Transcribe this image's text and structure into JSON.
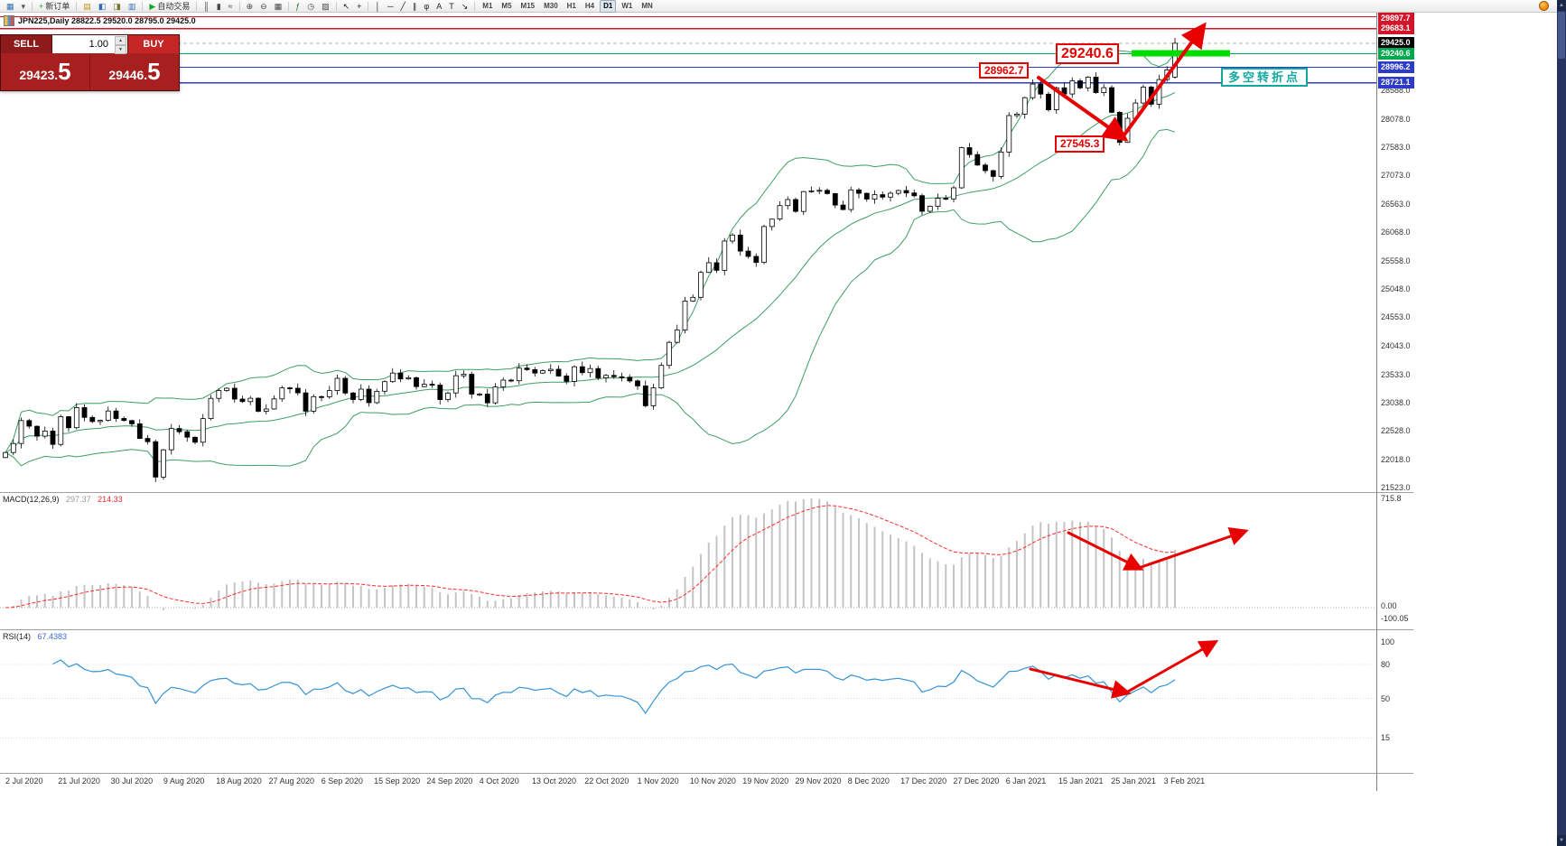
{
  "toolbar": {
    "items": [
      {
        "name": "new-chart-button",
        "glyph": "▦",
        "color": "#2e6db4"
      },
      {
        "name": "profiles-button",
        "glyph": "▾",
        "color": "#555555"
      },
      {
        "sep": true
      },
      {
        "name": "new-order-button",
        "glyph": "+",
        "color": "#18a52c",
        "label": "新订单"
      },
      {
        "sep": true
      },
      {
        "name": "market-watch-button",
        "glyph": "▤",
        "color": "#c08f1c"
      },
      {
        "name": "data-window-button",
        "glyph": "◧",
        "color": "#2e6db4"
      },
      {
        "name": "navigator-button",
        "glyph": "◨",
        "color": "#777733"
      },
      {
        "name": "terminal-button",
        "glyph": "▥",
        "color": "#2e6db4"
      },
      {
        "sep": true
      },
      {
        "name": "auto-trading-button",
        "glyph": "▶",
        "color": "#18a52c",
        "label": "自动交易"
      },
      {
        "sep": true
      },
      {
        "name": "bar-chart-button",
        "glyph": "║",
        "color": "#444444"
      },
      {
        "name": "candlestick-chart-button",
        "glyph": "▮",
        "color": "#444444"
      },
      {
        "name": "line-chart-button",
        "glyph": "≈",
        "color": "#444444"
      },
      {
        "sep": true
      },
      {
        "name": "zoom-in-button",
        "glyph": "⊕",
        "color": "#444444"
      },
      {
        "name": "zoom-out-button",
        "glyph": "⊖",
        "color": "#444444"
      },
      {
        "name": "tile-windows-button",
        "glyph": "▦",
        "color": "#444444"
      },
      {
        "sep": true
      },
      {
        "name": "indicators-button",
        "glyph": "ƒ",
        "color": "#1b7e3c"
      },
      {
        "name": "periods-button",
        "glyph": "◷",
        "color": "#444444"
      },
      {
        "name": "templates-button",
        "glyph": "▨",
        "color": "#444444"
      },
      {
        "sep": true
      },
      {
        "name": "cursor-button",
        "glyph": "↖",
        "color": "#222222"
      },
      {
        "name": "crosshair-button",
        "glyph": "+",
        "color": "#222222"
      },
      {
        "sep": true
      },
      {
        "name": "vertical-line-button",
        "glyph": "│",
        "color": "#222222"
      },
      {
        "name": "horizontal-line-button",
        "glyph": "─",
        "color": "#222222"
      },
      {
        "name": "trendline-button",
        "glyph": "╱",
        "color": "#222222"
      },
      {
        "name": "channel-button",
        "glyph": "∥",
        "color": "#222222"
      },
      {
        "name": "fibonacci-button",
        "glyph": "φ",
        "color": "#222222"
      },
      {
        "name": "text-button",
        "glyph": "A",
        "color": "#222222"
      },
      {
        "name": "label-button",
        "glyph": "T",
        "color": "#222222"
      },
      {
        "name": "arrows-tool-button",
        "glyph": "↘",
        "color": "#222222"
      },
      {
        "sep": true
      }
    ],
    "timeframes": [
      "M1",
      "M5",
      "M15",
      "M30",
      "H1",
      "H4",
      "D1",
      "W1",
      "MN"
    ],
    "active_timeframe": "D1"
  },
  "chart": {
    "title_line": "JPN225,Daily  28822.5 29520.0 28795.0 29425.0"
  },
  "one_click": {
    "sell_label": "SELL",
    "buy_label": "BUY",
    "lot": "1.00",
    "sell_price_main": "29423.",
    "sell_price_big": "5",
    "buy_price_main": "29446.",
    "buy_price_big": "5"
  },
  "price_scale": {
    "ticks": [
      "28588.0",
      "28078.0",
      "27583.0",
      "27073.0",
      "26563.0",
      "26068.0",
      "25558.0",
      "25048.0",
      "24553.0",
      "24043.0",
      "23533.0",
      "23038.0",
      "22528.0",
      "22018.0",
      "21523.0"
    ],
    "tags": [
      {
        "name": "resistance-tag-1",
        "label": "29897.7",
        "value": 29897.7,
        "color": "#d1162c"
      },
      {
        "name": "resistance-tag-2",
        "label": "29683.1",
        "value": 29683.1,
        "color": "#d1162c"
      },
      {
        "name": "current-price-tag",
        "label": "29425.0",
        "value": 29425.0,
        "color": "#000000"
      },
      {
        "name": "green-level-tag",
        "label": "29240.6",
        "value": 29240.6,
        "color": "#00a94e"
      },
      {
        "name": "blue-level-tag-1",
        "label": "28996.2",
        "value": 28996.2,
        "color": "#2c3bc8"
      },
      {
        "name": "blue-level-tag-2",
        "label": "28721.1",
        "value": 28721.1,
        "color": "#2c3bc8"
      }
    ]
  },
  "indicators": {
    "macd": {
      "name": "MACD(12,26,9)",
      "value_main": "297.37",
      "value_signal": "214.33",
      "scale": [
        "715.8",
        "0.00",
        "-100.05"
      ]
    },
    "rsi": {
      "name": "RSI(14)",
      "value": "67.4383",
      "scale": [
        100,
        80,
        50,
        15
      ]
    }
  },
  "annotations": {
    "breakout_level": "29240.6",
    "neckline_level": "28962.7",
    "swing_low": "27545.3",
    "turning_point": "多空转折点"
  },
  "x_axis": {
    "labels": [
      "2 Jul 2020",
      "21 Jul 2020",
      "30 Jul 2020",
      "9 Aug 2020",
      "18 Aug 2020",
      "27 Aug 2020",
      "6 Sep 2020",
      "15 Sep 2020",
      "24 Sep 2020",
      "4 Oct 2020",
      "13 Oct 2020",
      "22 Oct 2020",
      "1 Nov 2020",
      "10 Nov 2020",
      "19 Nov 2020",
      "29 Nov 2020",
      "8 Dec 2020",
      "17 Dec 2020",
      "27 Dec 2020",
      "6 Jan 2021",
      "15 Jan 2021",
      "25 Jan 2021",
      "3 Feb 2021"
    ]
  },
  "colors": {
    "bull_candle": "#ffffff",
    "bear_candle": "#000000",
    "bollinger": "#3f9e63",
    "macd_histogram": "#c4c4c4",
    "macd_signal": "#ff2a2a",
    "rsi_line": "#3593d6",
    "arrow": "#e80000",
    "highlight_bar": "#00dc00",
    "resistance_line": "#d1162c",
    "support_green": "#00a94e",
    "support_blue": "#2c3bc8"
  },
  "chart_data": {
    "type": "candlestick",
    "symbol": "JPN225",
    "timeframe": "Daily",
    "last_candle": {
      "open": 28822.5,
      "high": 29520.0,
      "low": 28795.0,
      "close": 29425.0
    },
    "closes": [
      22146,
      22306,
      22714,
      22614,
      22438,
      22529,
      22291,
      22784,
      22587,
      22945,
      22770,
      22696,
      22717,
      22884,
      22751,
      22715,
      22657,
      22397,
      22339,
      21710,
      22195,
      22573,
      22515,
      22418,
      22330,
      22750,
      23110,
      23249,
      23289,
      23096,
      23051,
      23111,
      22880,
      22920,
      23100,
      23296,
      23290,
      23208,
      22882,
      23140,
      23139,
      23248,
      23466,
      23205,
      23090,
      23274,
      23033,
      23235,
      23406,
      23559,
      23455,
      23476,
      23319,
      23360,
      23346,
      23087,
      23205,
      23512,
      23539,
      23185,
      23185,
      23030,
      23312,
      23434,
      23423,
      23647,
      23620,
      23559,
      23602,
      23627,
      23507,
      23411,
      23671,
      23567,
      23639,
      23474,
      23517,
      23494,
      23485,
      23419,
      23331,
      22977,
      23295,
      23695,
      24105,
      24325,
      24839,
      24906,
      25349,
      25521,
      25386,
      25907,
      26014,
      25728,
      25634,
      25527,
      26165,
      26297,
      26537,
      26645,
      26434,
      26787,
      26800,
      26809,
      26751,
      26547,
      26467,
      26817,
      26756,
      26653,
      26732,
      26688,
      26757,
      26806,
      26763,
      26714,
      26436,
      26524,
      26668,
      26657,
      26854,
      27568,
      27444,
      27258,
      27159,
      27056,
      27490,
      28139,
      28164,
      28456,
      28698,
      28519,
      28242,
      28633,
      28523,
      28757,
      28631,
      28822,
      28546,
      28635,
      28197,
      27663,
      28091,
      28362,
      28646,
      28341,
      28779,
      28950,
      29425
    ],
    "overlays": [
      {
        "name": "Bollinger Bands",
        "period": 20,
        "deviation": 2
      }
    ],
    "levels": [
      29897.7,
      29683.1,
      29240.6,
      28996.2,
      28721.1
    ],
    "y_axis_range": [
      21450,
      29940
    ],
    "sub_panels": [
      {
        "type": "MACD",
        "params": [
          12,
          26,
          9
        ]
      },
      {
        "type": "RSI",
        "period": 14
      }
    ]
  }
}
